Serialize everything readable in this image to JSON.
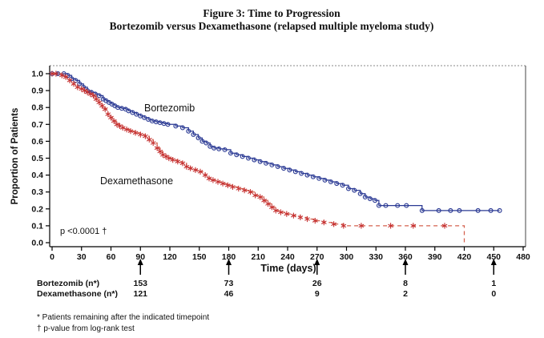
{
  "figure": {
    "title_line1": "Figure 3:  Time to Progression",
    "title_line2": "Bortezomib versus Dexamethasone (relapsed multiple myeloma study)"
  },
  "chart_data": {
    "type": "line",
    "subtype": "kaplan_meier_step",
    "title": "Figure 3: Time to Progression — Bortezomib versus Dexamethasone (relapsed multiple myeloma study)",
    "xlabel": "Time (days)",
    "ylabel": "Proportion of Patients",
    "xlim": [
      0,
      480
    ],
    "ylim": [
      0.0,
      1.0
    ],
    "x_ticks": [
      0,
      30,
      60,
      90,
      120,
      150,
      180,
      210,
      240,
      270,
      300,
      330,
      360,
      390,
      420,
      450,
      480
    ],
    "y_ticks": [
      1.0,
      0.9,
      0.8,
      0.7,
      0.6,
      0.5,
      0.4,
      0.3,
      0.2,
      0.1,
      0.0
    ],
    "grid": false,
    "legend_position": "inline-curve-labels",
    "annotations": {
      "p_value": "p <0.0001 †"
    },
    "series": [
      {
        "name": "Bortezomib",
        "color": "#2b3a94",
        "line_style": "solid",
        "marker": "circle",
        "points": [
          [
            0,
            1.0
          ],
          [
            6,
            1.0
          ],
          [
            12,
            1.0
          ],
          [
            16,
            0.99
          ],
          [
            20,
            0.97
          ],
          [
            24,
            0.96
          ],
          [
            28,
            0.94
          ],
          [
            32,
            0.92
          ],
          [
            36,
            0.9
          ],
          [
            40,
            0.89
          ],
          [
            44,
            0.88
          ],
          [
            48,
            0.87
          ],
          [
            52,
            0.85
          ],
          [
            55,
            0.84
          ],
          [
            58,
            0.83
          ],
          [
            61,
            0.82
          ],
          [
            64,
            0.81
          ],
          [
            67,
            0.8
          ],
          [
            71,
            0.795
          ],
          [
            75,
            0.79
          ],
          [
            78,
            0.78
          ],
          [
            82,
            0.77
          ],
          [
            86,
            0.76
          ],
          [
            90,
            0.75
          ],
          [
            94,
            0.74
          ],
          [
            98,
            0.73
          ],
          [
            102,
            0.72
          ],
          [
            106,
            0.715
          ],
          [
            110,
            0.71
          ],
          [
            114,
            0.705
          ],
          [
            118,
            0.7
          ],
          [
            126,
            0.69
          ],
          [
            133,
            0.68
          ],
          [
            139,
            0.66
          ],
          [
            144,
            0.64
          ],
          [
            149,
            0.62
          ],
          [
            153,
            0.6
          ],
          [
            157,
            0.59
          ],
          [
            161,
            0.57
          ],
          [
            165,
            0.56
          ],
          [
            170,
            0.555
          ],
          [
            176,
            0.55
          ],
          [
            182,
            0.53
          ],
          [
            188,
            0.52
          ],
          [
            194,
            0.51
          ],
          [
            200,
            0.5
          ],
          [
            206,
            0.49
          ],
          [
            212,
            0.48
          ],
          [
            218,
            0.47
          ],
          [
            224,
            0.46
          ],
          [
            230,
            0.45
          ],
          [
            236,
            0.44
          ],
          [
            242,
            0.43
          ],
          [
            248,
            0.42
          ],
          [
            254,
            0.41
          ],
          [
            260,
            0.4
          ],
          [
            266,
            0.39
          ],
          [
            272,
            0.38
          ],
          [
            278,
            0.37
          ],
          [
            284,
            0.36
          ],
          [
            290,
            0.35
          ],
          [
            296,
            0.34
          ],
          [
            302,
            0.32
          ],
          [
            308,
            0.31
          ],
          [
            314,
            0.29
          ],
          [
            319,
            0.27
          ],
          [
            324,
            0.26
          ],
          [
            329,
            0.25
          ],
          [
            333,
            0.22
          ],
          [
            340,
            0.22
          ],
          [
            352,
            0.22
          ],
          [
            361,
            0.22
          ],
          [
            377,
            0.19
          ],
          [
            394,
            0.19
          ],
          [
            406,
            0.19
          ],
          [
            415,
            0.19
          ],
          [
            434,
            0.19
          ],
          [
            447,
            0.19
          ],
          [
            456,
            0.19
          ]
        ]
      },
      {
        "name": "Dexamethasone",
        "color": "#c53030",
        "line_color": "#d4604e",
        "line_style": "dashed",
        "marker": "asterisk",
        "points": [
          [
            0,
            1.0
          ],
          [
            4,
            1.0
          ],
          [
            10,
            0.99
          ],
          [
            14,
            0.98
          ],
          [
            18,
            0.96
          ],
          [
            22,
            0.94
          ],
          [
            26,
            0.92
          ],
          [
            30,
            0.91
          ],
          [
            33,
            0.9
          ],
          [
            36,
            0.89
          ],
          [
            39,
            0.88
          ],
          [
            42,
            0.87
          ],
          [
            45,
            0.85
          ],
          [
            48,
            0.83
          ],
          [
            51,
            0.81
          ],
          [
            54,
            0.79
          ],
          [
            57,
            0.76
          ],
          [
            60,
            0.74
          ],
          [
            63,
            0.72
          ],
          [
            66,
            0.7
          ],
          [
            69,
            0.69
          ],
          [
            72,
            0.68
          ],
          [
            76,
            0.67
          ],
          [
            80,
            0.66
          ],
          [
            85,
            0.65
          ],
          [
            90,
            0.64
          ],
          [
            95,
            0.63
          ],
          [
            99,
            0.61
          ],
          [
            103,
            0.59
          ],
          [
            107,
            0.56
          ],
          [
            110,
            0.54
          ],
          [
            113,
            0.52
          ],
          [
            116,
            0.51
          ],
          [
            119,
            0.5
          ],
          [
            123,
            0.49
          ],
          [
            128,
            0.48
          ],
          [
            133,
            0.47
          ],
          [
            137,
            0.45
          ],
          [
            141,
            0.44
          ],
          [
            146,
            0.43
          ],
          [
            151,
            0.42
          ],
          [
            156,
            0.4
          ],
          [
            160,
            0.38
          ],
          [
            164,
            0.37
          ],
          [
            169,
            0.36
          ],
          [
            174,
            0.35
          ],
          [
            179,
            0.34
          ],
          [
            184,
            0.33
          ],
          [
            190,
            0.32
          ],
          [
            196,
            0.31
          ],
          [
            202,
            0.3
          ],
          [
            207,
            0.28
          ],
          [
            212,
            0.27
          ],
          [
            216,
            0.25
          ],
          [
            220,
            0.23
          ],
          [
            224,
            0.21
          ],
          [
            228,
            0.19
          ],
          [
            233,
            0.18
          ],
          [
            239,
            0.17
          ],
          [
            246,
            0.16
          ],
          [
            253,
            0.15
          ],
          [
            260,
            0.14
          ],
          [
            268,
            0.13
          ],
          [
            277,
            0.12
          ],
          [
            287,
            0.11
          ],
          [
            297,
            0.1
          ],
          [
            315,
            0.1
          ],
          [
            345,
            0.1
          ],
          [
            368,
            0.1
          ],
          [
            400,
            0.1
          ],
          [
            420,
            0.1
          ],
          [
            420,
            0.0
          ]
        ]
      }
    ],
    "risk_table": {
      "timepoints": [
        90,
        180,
        270,
        360,
        450
      ],
      "rows": [
        {
          "label": "Bortezomib (n*)",
          "values": [
            "153",
            "73",
            "26",
            "8",
            "1"
          ]
        },
        {
          "label": "Dexamethasone (n*)",
          "values": [
            "121",
            "46",
            "9",
            "2",
            "0"
          ]
        }
      ]
    }
  },
  "footnotes": [
    "* Patients remaining after the indicated  timepoint",
    "† p-value from log-rank test"
  ]
}
